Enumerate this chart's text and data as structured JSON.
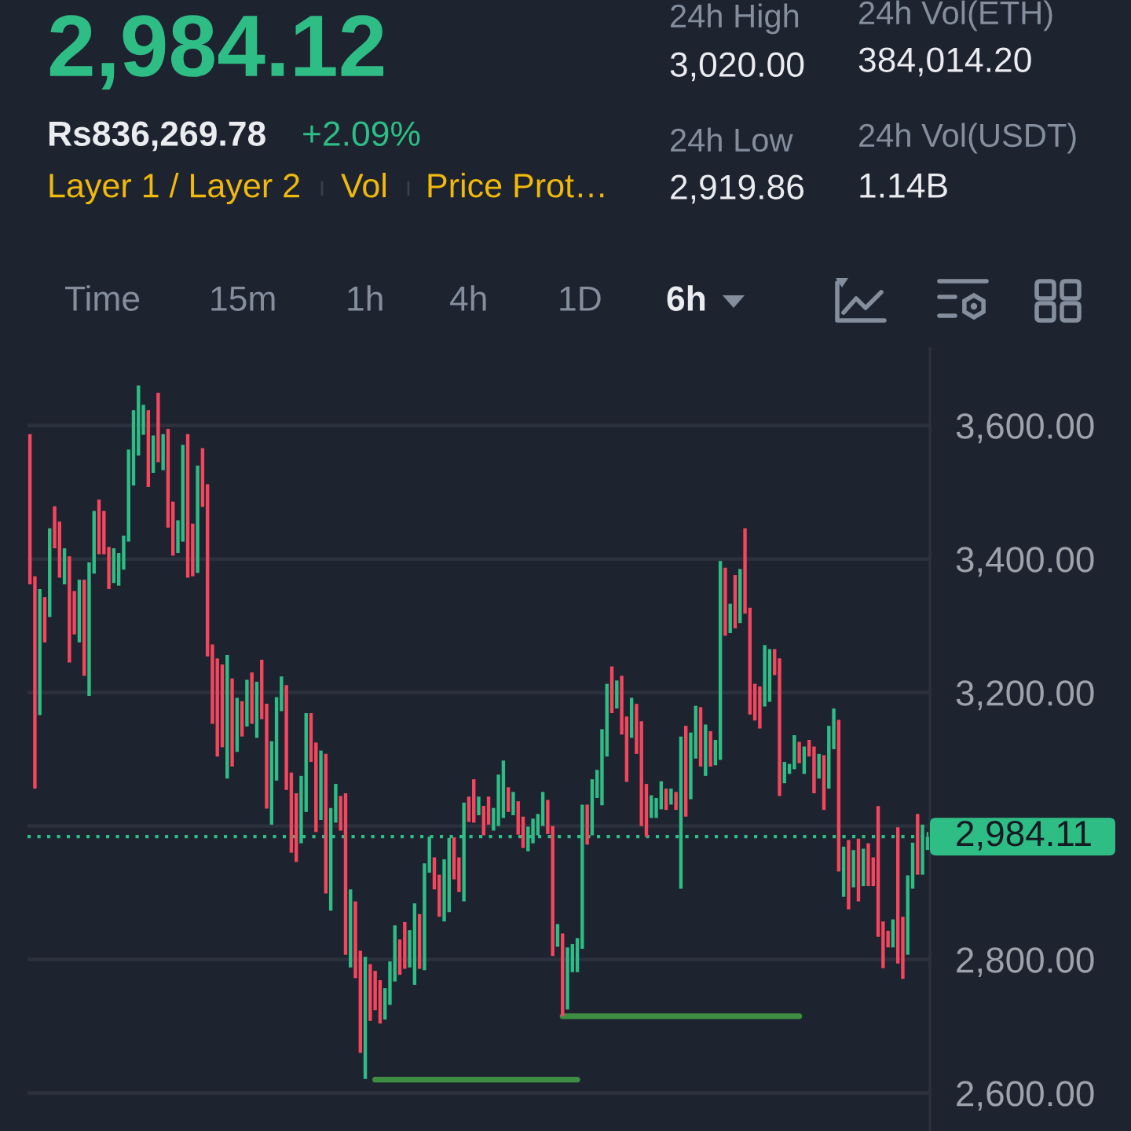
{
  "chart_data": {
    "type": "candlestick",
    "title": "2,984.12",
    "annotations": [
      "Rs836,269.78",
      "+2.09%",
      "Layer 1 / Layer 2",
      "Vol",
      "Price Prot…",
      "24h High",
      "3,020.00",
      "24h Low",
      "2,919.86",
      "24h Vol(ETH)",
      "384,014.20",
      "24h Vol(USDT)",
      "1.14B",
      "Time",
      "15m",
      "1h",
      "4h",
      "1D",
      "6h"
    ],
    "categories": [
      null,
      null,
      null,
      null,
      null,
      null,
      null,
      null,
      null,
      null,
      null,
      null,
      null,
      null,
      null,
      null,
      null,
      null,
      null,
      null,
      null,
      null,
      null,
      null,
      null,
      null,
      null,
      null,
      null,
      null,
      null,
      null,
      null,
      null,
      null,
      null,
      null,
      null,
      null,
      null,
      null,
      null,
      null,
      null,
      null,
      null,
      null,
      null,
      null,
      null,
      null,
      null,
      null,
      null,
      null,
      null,
      null,
      null,
      null,
      null,
      null,
      null,
      null,
      null,
      null,
      null,
      null,
      null,
      null,
      null,
      null,
      null,
      null,
      null,
      null,
      null,
      null,
      null,
      null,
      null,
      null,
      null,
      null,
      null,
      null,
      null,
      null,
      null,
      null,
      null,
      null,
      null,
      null,
      null,
      null,
      null,
      null,
      null,
      null,
      null,
      null,
      null,
      null,
      null,
      null,
      null,
      null,
      null,
      null,
      null,
      null,
      null,
      null,
      null,
      null,
      null,
      null,
      null,
      null,
      null,
      null,
      null,
      null,
      null,
      null,
      null,
      null,
      null,
      null,
      null,
      null,
      null,
      null,
      null,
      null,
      null,
      null,
      null,
      null,
      null,
      null,
      null,
      null,
      null,
      null,
      null,
      null,
      null,
      null,
      null,
      null,
      null,
      null,
      null,
      null,
      null,
      null,
      null,
      null,
      null,
      null,
      null,
      null,
      null,
      null,
      null,
      null,
      null,
      null,
      null,
      null,
      null,
      null,
      null,
      null,
      null,
      null,
      null,
      null,
      null,
      null,
      null,
      null
    ],
    "ohlc": [
      [
        3587,
        3587,
        3362,
        3362
      ],
      [
        3374,
        3374,
        3056,
        3056
      ],
      [
        3166,
        3355,
        3166,
        3355
      ],
      [
        3343,
        3343,
        3275,
        3275
      ],
      [
        3313,
        3446,
        3313,
        3446
      ],
      [
        3479,
        3479,
        3416,
        3416
      ],
      [
        3456,
        3456,
        3372,
        3372
      ],
      [
        3362,
        3416,
        3362,
        3416
      ],
      [
        3404,
        3404,
        3245,
        3245
      ],
      [
        3352,
        3352,
        3287,
        3287
      ],
      [
        3275,
        3369,
        3275,
        3369
      ],
      [
        3369,
        3369,
        3225,
        3225
      ],
      [
        3195,
        3395,
        3195,
        3395
      ],
      [
        3378,
        3472,
        3378,
        3472
      ],
      [
        3489,
        3489,
        3407,
        3407
      ],
      [
        3472,
        3472,
        3407,
        3407
      ],
      [
        3418,
        3418,
        3355,
        3355
      ],
      [
        3364,
        3416,
        3364,
        3416
      ],
      [
        3360,
        3409,
        3360,
        3409
      ],
      [
        3384,
        3435,
        3384,
        3435
      ],
      [
        3426,
        3564,
        3426,
        3564
      ],
      [
        3510,
        3623,
        3510,
        3623
      ],
      [
        3555,
        3660,
        3555,
        3660
      ],
      [
        3586,
        3631,
        3586,
        3631
      ],
      [
        3623,
        3623,
        3508,
        3508
      ],
      [
        3529,
        3585,
        3529,
        3585
      ],
      [
        3649,
        3649,
        3545,
        3545
      ],
      [
        3533,
        3587,
        3533,
        3587
      ],
      [
        3595,
        3595,
        3447,
        3447
      ],
      [
        3486,
        3486,
        3405,
        3405
      ],
      [
        3409,
        3458,
        3409,
        3458
      ],
      [
        3426,
        3571,
        3426,
        3571
      ],
      [
        3587,
        3587,
        3372,
        3372
      ],
      [
        3453,
        3453,
        3374,
        3374
      ],
      [
        3379,
        3540,
        3379,
        3540
      ],
      [
        3566,
        3566,
        3478,
        3478
      ],
      [
        3512,
        3512,
        3254,
        3254
      ],
      [
        3272,
        3272,
        3153,
        3153
      ],
      [
        3251,
        3251,
        3104,
        3104
      ],
      [
        3242,
        3242,
        3118,
        3118
      ],
      [
        3071,
        3256,
        3071,
        3256
      ],
      [
        3221,
        3221,
        3089,
        3089
      ],
      [
        3111,
        3192,
        3111,
        3192
      ],
      [
        3187,
        3187,
        3134,
        3134
      ],
      [
        3149,
        3219,
        3149,
        3219
      ],
      [
        3230,
        3230,
        3153,
        3153
      ],
      [
        3132,
        3216,
        3132,
        3216
      ],
      [
        3249,
        3249,
        3160,
        3160
      ],
      [
        3183,
        3183,
        3026,
        3026
      ],
      [
        3002,
        3127,
        3002,
        3127
      ],
      [
        3068,
        3193,
        3068,
        3193
      ],
      [
        3172,
        3224,
        3172,
        3224
      ],
      [
        3211,
        3211,
        3054,
        3054
      ],
      [
        3080,
        3080,
        2960,
        2960
      ],
      [
        3049,
        3049,
        2946,
        2946
      ],
      [
        2974,
        3075,
        2974,
        3075
      ],
      [
        3021,
        3169,
        3021,
        3169
      ],
      [
        3169,
        3169,
        3096,
        3096
      ],
      [
        3125,
        3125,
        2991,
        2991
      ],
      [
        3009,
        3113,
        3009,
        3113
      ],
      [
        3108,
        3108,
        2899,
        2899
      ],
      [
        2873,
        3027,
        2873,
        3027
      ],
      [
        3005,
        3063,
        3005,
        3063
      ],
      [
        3045,
        3045,
        2993,
        2993
      ],
      [
        3049,
        3049,
        2807,
        2807
      ],
      [
        2788,
        2905,
        2788,
        2905
      ],
      [
        2887,
        2887,
        2772,
        2772
      ],
      [
        2813,
        2813,
        2660,
        2660
      ],
      [
        2621,
        2804,
        2621,
        2804
      ],
      [
        2793,
        2793,
        2708,
        2708
      ],
      [
        2783,
        2783,
        2724,
        2724
      ],
      [
        2769,
        2769,
        2704,
        2704
      ],
      [
        2710,
        2757,
        2710,
        2757
      ],
      [
        2732,
        2797,
        2732,
        2797
      ],
      [
        2767,
        2851,
        2767,
        2851
      ],
      [
        2830,
        2830,
        2777,
        2777
      ],
      [
        2856,
        2856,
        2786,
        2786
      ],
      [
        2788,
        2844,
        2788,
        2844
      ],
      [
        2762,
        2884,
        2762,
        2884
      ],
      [
        2868,
        2868,
        2786,
        2786
      ],
      [
        2784,
        2944,
        2784,
        2944
      ],
      [
        2930,
        2984,
        2930,
        2984
      ],
      [
        2953,
        2953,
        2905,
        2905
      ],
      [
        2927,
        2927,
        2864,
        2864
      ],
      [
        2857,
        2950,
        2857,
        2950
      ],
      [
        2871,
        2982,
        2871,
        2982
      ],
      [
        2983,
        2983,
        2920,
        2920
      ],
      [
        2953,
        2953,
        2901,
        2901
      ],
      [
        2887,
        3035,
        2887,
        3035
      ],
      [
        3044,
        3044,
        3006,
        3006
      ],
      [
        3070,
        3070,
        3005,
        3005
      ],
      [
        3016,
        3044,
        3016,
        3044
      ],
      [
        3030,
        3030,
        2986,
        2986
      ],
      [
        3044,
        3044,
        3002,
        3002
      ],
      [
        2993,
        3027,
        2993,
        3027
      ],
      [
        3000,
        3077,
        3000,
        3077
      ],
      [
        3012,
        3098,
        3012,
        3098
      ],
      [
        3058,
        3058,
        3021,
        3021
      ],
      [
        3016,
        3051,
        3016,
        3051
      ],
      [
        3037,
        3037,
        2987,
        2987
      ],
      [
        3014,
        3014,
        2967,
        2967
      ],
      [
        2962,
        2999,
        2962,
        2999
      ],
      [
        2974,
        3011,
        2974,
        3011
      ],
      [
        2986,
        3018,
        2986,
        3018
      ],
      [
        3000,
        3051,
        3000,
        3051
      ],
      [
        3039,
        3039,
        2988,
        2988
      ],
      [
        3000,
        3000,
        2805,
        2805
      ],
      [
        2819,
        2853,
        2819,
        2853
      ],
      [
        2839,
        2839,
        2715,
        2715
      ],
      [
        2725,
        2818,
        2725,
        2818
      ],
      [
        2781,
        2823,
        2781,
        2823
      ],
      [
        2781,
        2832,
        2781,
        2832
      ],
      [
        2816,
        3032,
        2816,
        3032
      ],
      [
        3032,
        3032,
        2972,
        2972
      ],
      [
        2986,
        3070,
        2986,
        3070
      ],
      [
        3042,
        3084,
        3042,
        3084
      ],
      [
        3031,
        3145,
        3031,
        3145
      ],
      [
        3104,
        3213,
        3104,
        3213
      ],
      [
        3239,
        3239,
        3169,
        3169
      ],
      [
        3176,
        3218,
        3176,
        3218
      ],
      [
        3225,
        3225,
        3137,
        3137
      ],
      [
        3164,
        3164,
        3066,
        3066
      ],
      [
        3132,
        3192,
        3132,
        3192
      ],
      [
        3183,
        3183,
        3108,
        3108
      ],
      [
        3157,
        3157,
        3000,
        3000
      ],
      [
        3063,
        3063,
        2984,
        2984
      ],
      [
        3012,
        3046,
        3012,
        3046
      ],
      [
        3012,
        3042,
        3012,
        3042
      ],
      [
        3025,
        3067,
        3025,
        3067
      ],
      [
        3056,
        3056,
        3024,
        3024
      ],
      [
        3032,
        3056,
        3032,
        3056
      ],
      [
        3051,
        3051,
        3024,
        3024
      ],
      [
        2906,
        3134,
        2906,
        3134
      ],
      [
        3150,
        3150,
        3014,
        3014
      ],
      [
        3040,
        3140,
        3040,
        3140
      ],
      [
        3101,
        3180,
        3101,
        3180
      ],
      [
        3178,
        3178,
        3089,
        3089
      ],
      [
        3075,
        3152,
        3075,
        3152
      ],
      [
        3142,
        3142,
        3089,
        3089
      ],
      [
        3091,
        3129,
        3091,
        3129
      ],
      [
        3099,
        3397,
        3099,
        3397
      ],
      [
        3387,
        3387,
        3285,
        3285
      ],
      [
        3289,
        3333,
        3289,
        3333
      ],
      [
        3376,
        3376,
        3296,
        3296
      ],
      [
        3304,
        3385,
        3304,
        3385
      ],
      [
        3446,
        3446,
        3318,
        3318
      ],
      [
        3327,
        3327,
        3167,
        3167
      ],
      [
        3213,
        3213,
        3158,
        3158
      ],
      [
        3209,
        3209,
        3146,
        3146
      ],
      [
        3179,
        3271,
        3179,
        3271
      ],
      [
        3186,
        3265,
        3186,
        3265
      ],
      [
        3265,
        3265,
        3226,
        3226
      ],
      [
        3251,
        3251,
        3045,
        3045
      ],
      [
        3064,
        3096,
        3064,
        3096
      ],
      [
        3078,
        3093,
        3078,
        3093
      ],
      [
        3085,
        3136,
        3085,
        3136
      ],
      [
        3126,
        3126,
        3094,
        3094
      ],
      [
        3078,
        3119,
        3078,
        3119
      ],
      [
        3129,
        3129,
        3104,
        3104
      ],
      [
        3119,
        3119,
        3049,
        3049
      ],
      [
        3071,
        3108,
        3071,
        3108
      ],
      [
        3106,
        3106,
        3024,
        3024
      ],
      [
        3056,
        3150,
        3056,
        3150
      ],
      [
        3115,
        3176,
        3115,
        3176
      ],
      [
        3159,
        3159,
        2932,
        2932
      ],
      [
        2894,
        2969,
        2894,
        2969
      ],
      [
        2979,
        2979,
        2875,
        2875
      ],
      [
        2908,
        2964,
        2908,
        2964
      ],
      [
        2981,
        2981,
        2887,
        2887
      ],
      [
        2910,
        2966,
        2910,
        2966
      ],
      [
        2974,
        2974,
        2910,
        2910
      ],
      [
        2953,
        2953,
        2910,
        2910
      ],
      [
        3030,
        3030,
        2834,
        2834
      ],
      [
        2857,
        2857,
        2787,
        2787
      ],
      [
        2843,
        2843,
        2818,
        2818
      ],
      [
        2818,
        2860,
        2818,
        2860
      ],
      [
        2998,
        2998,
        2794,
        2794
      ],
      [
        2864,
        2864,
        2771,
        2771
      ],
      [
        2807,
        2926,
        2807,
        2926
      ],
      [
        2906,
        2975,
        2906,
        2975
      ],
      [
        3018,
        3018,
        2927,
        2927
      ],
      [
        2927,
        3002,
        2927,
        3002
      ],
      [
        2964,
        2991,
        2964,
        2984
      ]
    ],
    "colors": [
      "#f6465d",
      "#f6465d",
      "#2ebd85",
      "#f6465d",
      "#2ebd85",
      "#f6465d",
      "#f6465d",
      "#2ebd85",
      "#f6465d",
      "#f6465d",
      "#2ebd85",
      "#f6465d",
      "#2ebd85",
      "#2ebd85",
      "#f6465d",
      "#f6465d",
      "#f6465d",
      "#2ebd85",
      "#2ebd85",
      "#2ebd85",
      "#2ebd85",
      "#2ebd85",
      "#2ebd85",
      "#2ebd85",
      "#f6465d",
      "#2ebd85",
      "#f6465d",
      "#2ebd85",
      "#f6465d",
      "#f6465d",
      "#2ebd85",
      "#2ebd85",
      "#f6465d",
      "#f6465d",
      "#2ebd85",
      "#f6465d",
      "#f6465d",
      "#f6465d",
      "#f6465d",
      "#f6465d",
      "#2ebd85",
      "#f6465d",
      "#2ebd85",
      "#f6465d",
      "#2ebd85",
      "#f6465d",
      "#2ebd85",
      "#f6465d",
      "#f6465d",
      "#2ebd85",
      "#2ebd85",
      "#2ebd85",
      "#f6465d",
      "#f6465d",
      "#f6465d",
      "#2ebd85",
      "#2ebd85",
      "#f6465d",
      "#f6465d",
      "#2ebd85",
      "#f6465d",
      "#2ebd85",
      "#2ebd85",
      "#f6465d",
      "#f6465d",
      "#2ebd85",
      "#f6465d",
      "#f6465d",
      "#2ebd85",
      "#f6465d",
      "#f6465d",
      "#f6465d",
      "#2ebd85",
      "#2ebd85",
      "#2ebd85",
      "#f6465d",
      "#f6465d",
      "#2ebd85",
      "#2ebd85",
      "#f6465d",
      "#2ebd85",
      "#2ebd85",
      "#f6465d",
      "#f6465d",
      "#2ebd85",
      "#2ebd85",
      "#f6465d",
      "#f6465d",
      "#2ebd85",
      "#f6465d",
      "#f6465d",
      "#2ebd85",
      "#f6465d",
      "#f6465d",
      "#2ebd85",
      "#2ebd85",
      "#2ebd85",
      "#f6465d",
      "#2ebd85",
      "#f6465d",
      "#f6465d",
      "#2ebd85",
      "#2ebd85",
      "#2ebd85",
      "#2ebd85",
      "#f6465d",
      "#f6465d",
      "#2ebd85",
      "#f6465d",
      "#2ebd85",
      "#2ebd85",
      "#2ebd85",
      "#2ebd85",
      "#f6465d",
      "#2ebd85",
      "#2ebd85",
      "#2ebd85",
      "#2ebd85",
      "#f6465d",
      "#2ebd85",
      "#f6465d",
      "#f6465d",
      "#2ebd85",
      "#f6465d",
      "#f6465d",
      "#f6465d",
      "#2ebd85",
      "#2ebd85",
      "#2ebd85",
      "#f6465d",
      "#2ebd85",
      "#f6465d",
      "#2ebd85",
      "#f6465d",
      "#2ebd85",
      "#2ebd85",
      "#f6465d",
      "#2ebd85",
      "#f6465d",
      "#2ebd85",
      "#2ebd85",
      "#f6465d",
      "#2ebd85",
      "#f6465d",
      "#2ebd85",
      "#f6465d",
      "#f6465d",
      "#f6465d",
      "#f6465d",
      "#2ebd85",
      "#2ebd85",
      "#f6465d",
      "#f6465d",
      "#2ebd85",
      "#2ebd85",
      "#2ebd85",
      "#f6465d",
      "#2ebd85",
      "#f6465d",
      "#f6465d",
      "#2ebd85",
      "#f6465d",
      "#2ebd85",
      "#2ebd85",
      "#f6465d",
      "#2ebd85",
      "#f6465d",
      "#2ebd85",
      "#f6465d",
      "#2ebd85",
      "#f6465d",
      "#f6465d",
      "#f6465d",
      "#f6465d",
      "#f6465d",
      "#2ebd85",
      "#f6465d",
      "#f6465d",
      "#2ebd85",
      "#2ebd85",
      "#f6465d",
      "#2ebd85",
      "#2ebd85"
    ],
    "series": [
      {
        "type": "line",
        "color": "#3e8e41",
        "values": [
          null,
          null,
          null,
          null,
          null,
          null,
          null,
          null,
          null,
          null,
          null,
          null,
          null,
          null,
          null,
          null,
          null,
          null,
          null,
          null,
          null,
          null,
          null,
          null,
          null,
          null,
          null,
          null,
          null,
          null,
          null,
          null,
          null,
          null,
          null,
          null,
          null,
          null,
          null,
          null,
          null,
          null,
          null,
          null,
          null,
          null,
          null,
          null,
          null,
          null,
          null,
          null,
          null,
          null,
          null,
          null,
          null,
          null,
          null,
          null,
          null,
          null,
          null,
          null,
          null,
          null,
          null,
          null,
          null,
          null,
          2620,
          2620,
          2620,
          2620,
          2620,
          2620,
          2620,
          2620,
          2620,
          2620,
          2620,
          2620,
          2620,
          2620,
          2620,
          2620,
          2620,
          2620,
          2620,
          2620,
          2620,
          2620,
          2620,
          2620,
          2620,
          2620,
          2620,
          2620,
          2620,
          2620,
          2620,
          2620,
          2620,
          2620,
          2620,
          2620,
          2620,
          2620,
          2620,
          2620,
          2620,
          2620,
          null,
          null,
          null,
          null,
          null,
          null,
          null,
          null,
          null,
          null,
          null,
          null,
          null,
          null,
          null,
          null,
          null,
          null,
          null,
          null,
          null,
          null,
          null,
          null,
          null,
          null,
          null,
          null,
          null,
          null,
          null,
          null,
          null,
          null,
          null,
          null,
          null,
          null,
          null,
          null,
          null,
          null,
          null,
          null,
          null,
          null,
          null,
          null,
          null,
          null,
          null,
          null,
          null,
          null,
          null,
          null,
          null,
          null,
          null,
          null,
          null,
          null,
          null,
          null,
          null,
          null,
          null,
          null,
          null,
          null,
          null
        ]
      },
      {
        "type": "line",
        "color": "#3e8e41",
        "values": [
          null,
          null,
          null,
          null,
          null,
          null,
          null,
          null,
          null,
          null,
          null,
          null,
          null,
          null,
          null,
          null,
          null,
          null,
          null,
          null,
          null,
          null,
          null,
          null,
          null,
          null,
          null,
          null,
          null,
          null,
          null,
          null,
          null,
          null,
          null,
          null,
          null,
          null,
          null,
          null,
          null,
          null,
          null,
          null,
          null,
          null,
          null,
          null,
          null,
          null,
          null,
          null,
          null,
          null,
          null,
          null,
          null,
          null,
          null,
          null,
          null,
          null,
          null,
          null,
          null,
          null,
          null,
          null,
          null,
          null,
          null,
          null,
          null,
          null,
          null,
          null,
          null,
          null,
          null,
          null,
          null,
          null,
          null,
          null,
          null,
          null,
          null,
          null,
          null,
          null,
          null,
          null,
          null,
          null,
          null,
          null,
          null,
          null,
          null,
          null,
          null,
          null,
          null,
          null,
          null,
          null,
          null,
          null,
          2715,
          2715,
          2715,
          2715,
          2715,
          2715,
          2715,
          2715,
          2715,
          2715,
          2715,
          2715,
          2715,
          2715,
          2715,
          2715,
          2715,
          2715,
          2715,
          2715,
          2715,
          2715,
          2715,
          2715,
          2715,
          2715,
          2715,
          2715,
          2715,
          2715,
          2715,
          2715,
          2715,
          2715,
          2715,
          2715,
          2715,
          2715,
          2715,
          2715,
          2715,
          2715,
          2715,
          2715,
          2715,
          2715,
          2715,
          2715,
          2715,
          null,
          null,
          null,
          null,
          null,
          null,
          null,
          null,
          null,
          null,
          null,
          null,
          null,
          null,
          null,
          null,
          null,
          null,
          null,
          null,
          null,
          null,
          null,
          null,
          null,
          null
        ]
      }
    ],
    "ylim": [
      2543,
      3715
    ],
    "yticks": [
      {
        "value": 2600,
        "label": "2,600.00"
      },
      {
        "value": 2800,
        "label": "2,800.00"
      },
      {
        "value": 3000,
        "label": null
      },
      {
        "value": 3200,
        "label": "3,200.00"
      },
      {
        "value": 3400,
        "label": "3,400.00"
      },
      {
        "value": 3600,
        "label": "3,600.00"
      }
    ],
    "ref_lines": [
      {
        "axis": "y",
        "value": 2984.11,
        "label": "2,984.11",
        "color": "#2ebd85",
        "line_style": "dotted"
      }
    ],
    "grid": "y",
    "tick_labels": "y"
  }
}
